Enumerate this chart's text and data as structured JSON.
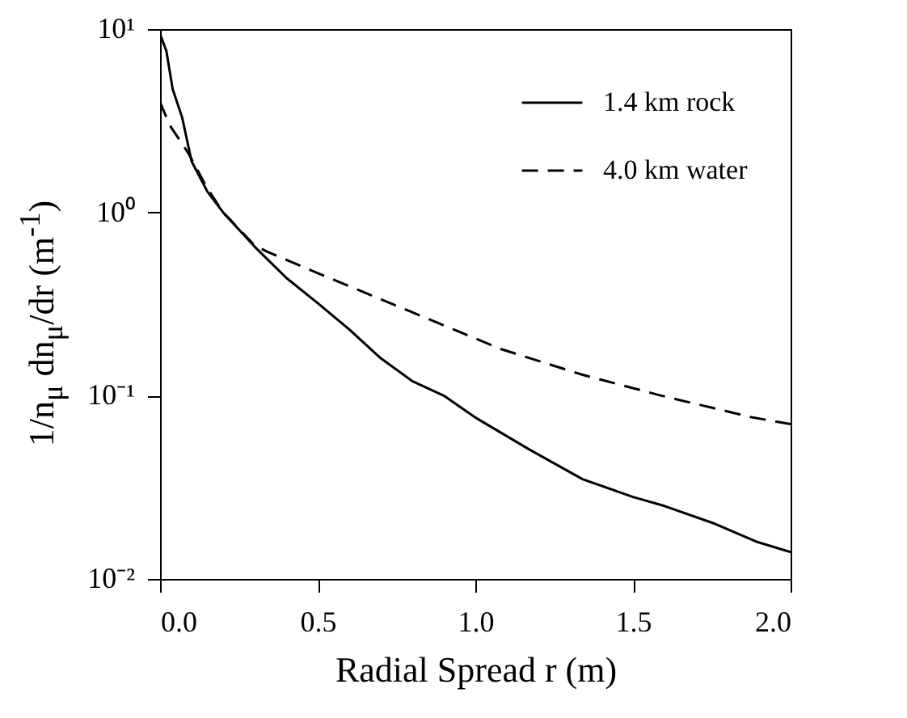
{
  "chart_data": {
    "type": "line",
    "xlabel": "Radial Spread r (m)",
    "ylabel": "1/n$_{μ}$ dn$_{μ}$/dr  (m$^{-1}$)",
    "log": "y",
    "xlim": [
      0,
      2
    ],
    "ylim": [
      0.01,
      10
    ],
    "xticks": [
      {
        "value": 0,
        "label": "0.0"
      },
      {
        "value": 0.5,
        "label": "0.5"
      },
      {
        "value": 1,
        "label": "1.0"
      },
      {
        "value": 1.5,
        "label": "1.5"
      },
      {
        "value": 2,
        "label": "2.0"
      }
    ],
    "yticks": [
      {
        "value": 0.01,
        "label": "10⁻²"
      },
      {
        "value": 0.1,
        "label": "10⁻¹"
      },
      {
        "value": 1,
        "label": "10⁰"
      },
      {
        "value": 10,
        "label": "10¹"
      }
    ],
    "legend": "top right",
    "grid": false,
    "series": [
      {
        "name": "1.4 km rock",
        "color": "#000000",
        "line_style": "solid",
        "x": [
          0,
          0.02,
          0.04,
          0.07,
          0.1,
          0.15,
          0.2,
          0.3,
          0.4,
          0.5,
          0.6,
          0.7,
          0.8,
          0.9,
          1.0,
          1.17,
          1.34,
          1.5,
          1.6,
          1.76,
          1.89,
          2.0
        ],
        "values": [
          9.4,
          7.6,
          4.7,
          3.3,
          1.9,
          1.3,
          1.0,
          0.65,
          0.44,
          0.32,
          0.23,
          0.16,
          0.12,
          0.1,
          0.076,
          0.051,
          0.035,
          0.028,
          0.025,
          0.02,
          0.016,
          0.014
        ]
      },
      {
        "name": "4.0 km water",
        "color": "#000000",
        "line_style": "dashed",
        "x": [
          0,
          0.03,
          0.09,
          0.15,
          0.2,
          0.3,
          0.34,
          0.47,
          0.675,
          0.88,
          1.08,
          1.34,
          1.59,
          1.88,
          2.0
        ],
        "values": [
          4,
          3,
          2.1,
          1.35,
          1.0,
          0.66,
          0.61,
          0.49,
          0.35,
          0.25,
          0.18,
          0.13,
          0.1,
          0.076,
          0.07
        ]
      }
    ]
  }
}
